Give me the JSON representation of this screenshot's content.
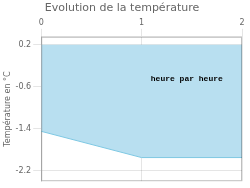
{
  "chart_data": {
    "type": "area",
    "title": "Evolution de la température",
    "y_label": "Température en °C",
    "annotations": [
      {
        "text": "heure par heure",
        "x": 1.45,
        "y": -0.45
      }
    ],
    "x": [
      0,
      1.0,
      2.0
    ],
    "series": [
      {
        "type": "line",
        "color": "#7ec8e3",
        "values": [
          -1.45,
          -1.95,
          -1.95
        ]
      },
      {
        "type": "area",
        "color": "#b8dff0",
        "values": [
          0.2,
          0.2,
          0.2
        ]
      }
    ],
    "xlim": [
      0,
      2
    ],
    "ylim": [
      -2.4,
      0.35
    ],
    "xticks": [
      0,
      1,
      2
    ],
    "yticks": [
      0.2,
      -0.6,
      -1.4,
      -2.2
    ],
    "grid": true
  }
}
